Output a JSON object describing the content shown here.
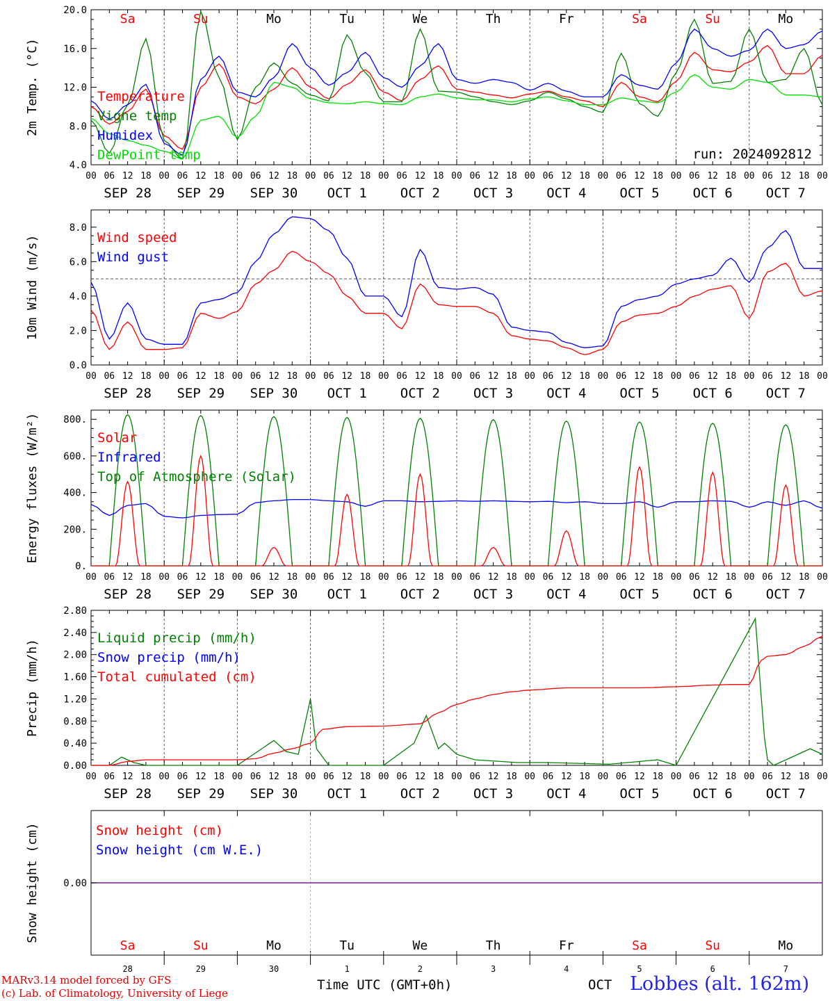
{
  "chart_data": [
    {
      "type": "line",
      "ylabel": "2m Temp. (°C)",
      "ylim": [
        4.0,
        20.0
      ],
      "yticks": [
        "4.0",
        "8.0",
        "12.0",
        "16.0",
        "20.0"
      ],
      "annotation": "run: 2024092812",
      "days": [
        "Sa",
        "Su",
        "Mo",
        "Tu",
        "We",
        "Th",
        "Fr",
        "Sa",
        "Su",
        "Mo"
      ],
      "x": [
        0,
        6,
        12,
        18,
        24,
        30,
        36,
        42,
        48,
        54,
        60,
        66,
        72,
        78,
        84,
        90,
        96,
        102,
        108,
        114,
        120,
        126,
        132,
        138,
        144,
        150,
        156,
        162,
        168,
        174,
        180,
        186,
        192,
        198,
        204,
        210,
        216,
        222,
        228,
        234,
        240
      ],
      "series": [
        {
          "name": "Temperature",
          "color": "#ff0000",
          "values": [
            10.0,
            8.2,
            9.5,
            11.8,
            7.0,
            5.6,
            12.0,
            14.4,
            11.0,
            10.3,
            11.8,
            14.0,
            12.0,
            10.8,
            12.3,
            13.8,
            11.5,
            10.6,
            12.8,
            14.2,
            11.8,
            11.5,
            11.2,
            10.9,
            11.3,
            11.6,
            11.0,
            10.6,
            10.0,
            12.5,
            11.0,
            10.5,
            12.6,
            15.6,
            13.8,
            13.6,
            14.6,
            16.3,
            13.4,
            13.4,
            15.3
          ]
        },
        {
          "name": "Vigne temp",
          "color": "#008000",
          "values": [
            8.6,
            5.2,
            10.2,
            17.0,
            6.5,
            4.6,
            19.8,
            13.0,
            6.6,
            12.0,
            14.5,
            12.4,
            11.2,
            10.6,
            17.4,
            13.5,
            10.5,
            10.5,
            18.0,
            11.6,
            11.5,
            11.0,
            10.5,
            10.2,
            10.6,
            11.5,
            10.8,
            10.0,
            9.4,
            15.5,
            10.3,
            9.0,
            13.5,
            19.0,
            12.4,
            12.6,
            18.0,
            12.5,
            12.8,
            16.0,
            10.2
          ]
        },
        {
          "name": "Humidex",
          "color": "#0000ff",
          "values": [
            10.6,
            8.7,
            10.2,
            12.3,
            6.2,
            5.0,
            12.8,
            15.2,
            11.5,
            11.0,
            13.0,
            16.5,
            14.0,
            12.2,
            13.5,
            15.6,
            13.0,
            12.0,
            14.2,
            16.5,
            12.8,
            12.4,
            12.8,
            12.5,
            11.7,
            12.4,
            11.6,
            11.0,
            11.0,
            13.3,
            12.2,
            11.8,
            14.5,
            18.0,
            16.0,
            15.2,
            15.8,
            18.0,
            16.0,
            16.4,
            17.8
          ]
        },
        {
          "name": "DewPoint temp",
          "color": "#00dd00",
          "values": [
            8.8,
            7.2,
            6.5,
            6.0,
            5.4,
            4.6,
            8.6,
            9.0,
            6.8,
            9.0,
            12.5,
            12.0,
            10.8,
            10.4,
            10.3,
            10.5,
            10.3,
            10.2,
            11.0,
            11.3,
            10.9,
            10.7,
            10.7,
            10.5,
            10.8,
            11.0,
            10.6,
            10.2,
            10.2,
            10.9,
            10.6,
            10.4,
            11.5,
            13.3,
            12.0,
            11.8,
            12.8,
            12.5,
            11.2,
            11.2,
            11.0
          ]
        }
      ]
    },
    {
      "type": "line",
      "ylabel": "10m Wind (m/s)",
      "ylim": [
        0.0,
        9.0
      ],
      "yticks": [
        "0.0",
        "2.0",
        "4.0",
        "6.0",
        "8.0"
      ],
      "reference_line": 5.0,
      "x": [
        0,
        6,
        12,
        18,
        24,
        30,
        36,
        42,
        48,
        54,
        60,
        66,
        72,
        78,
        84,
        90,
        96,
        102,
        108,
        114,
        120,
        126,
        132,
        138,
        144,
        150,
        156,
        162,
        168,
        174,
        180,
        186,
        192,
        198,
        204,
        210,
        216,
        222,
        228,
        234,
        240
      ],
      "series": [
        {
          "name": "Wind speed",
          "color": "#ff0000",
          "values": [
            3.2,
            0.9,
            2.5,
            0.9,
            0.9,
            1.0,
            3.0,
            2.7,
            3.1,
            4.7,
            5.5,
            6.6,
            6.0,
            5.3,
            4.0,
            3.0,
            3.0,
            2.1,
            4.7,
            3.5,
            3.4,
            3.4,
            3.0,
            1.7,
            1.5,
            1.4,
            1.0,
            0.6,
            0.9,
            2.5,
            2.9,
            3.0,
            3.4,
            4.0,
            4.4,
            4.6,
            2.7,
            5.4,
            5.9,
            4.0,
            4.3
          ]
        },
        {
          "name": "Wind gust",
          "color": "#0000ff",
          "values": [
            4.8,
            1.5,
            3.6,
            1.5,
            1.2,
            1.2,
            3.6,
            3.8,
            4.2,
            6.0,
            7.6,
            8.6,
            8.5,
            7.8,
            6.2,
            4.0,
            4.0,
            2.8,
            6.7,
            4.5,
            4.4,
            4.5,
            4.1,
            2.2,
            2.0,
            1.9,
            1.3,
            1.0,
            1.1,
            3.4,
            3.8,
            4.0,
            4.7,
            5.0,
            5.2,
            6.2,
            4.8,
            6.8,
            7.8,
            5.6,
            5.6
          ]
        }
      ]
    },
    {
      "type": "line",
      "ylabel": "Energy fluxes (W/m²)",
      "ylim": [
        0,
        850
      ],
      "yticks": [
        "0.",
        "200.",
        "400.",
        "600.",
        "800."
      ],
      "series": [
        {
          "name": "Solar",
          "color": "#ff0000",
          "daily_peak": [
            460,
            600,
            100,
            390,
            500,
            100,
            190,
            540,
            510,
            440
          ]
        },
        {
          "name": "Infrared",
          "color": "#0000ff",
          "x": [
            0,
            6,
            12,
            18,
            24,
            30,
            36,
            42,
            48,
            54,
            60,
            66,
            72,
            78,
            84,
            90,
            96,
            102,
            108,
            114,
            120,
            126,
            132,
            138,
            144,
            150,
            156,
            162,
            168,
            174,
            180,
            186,
            192,
            198,
            204,
            210,
            216,
            222,
            228,
            234,
            240
          ],
          "values": [
            335,
            275,
            330,
            340,
            270,
            262,
            275,
            280,
            282,
            345,
            355,
            362,
            362,
            355,
            350,
            325,
            355,
            355,
            350,
            352,
            355,
            352,
            355,
            352,
            350,
            352,
            345,
            350,
            340,
            340,
            350,
            320,
            350,
            350,
            355,
            352,
            320,
            350,
            330,
            355,
            315
          ]
        },
        {
          "name": "Top of Atmosphere (Solar)",
          "color": "#008000",
          "daily_peak": [
            825,
            820,
            815,
            810,
            805,
            798,
            790,
            785,
            778,
            770
          ]
        }
      ]
    },
    {
      "type": "line",
      "ylabel": "Precip (mm/h)",
      "ylim": [
        0.0,
        2.8
      ],
      "yticks": [
        "0.00",
        "0.40",
        "0.80",
        "1.20",
        "1.60",
        "2.00",
        "2.40",
        "2.80"
      ],
      "series": [
        {
          "name": "Liquid precip (mm/h)",
          "color": "#008000",
          "x": [
            0,
            6,
            10,
            14,
            18,
            24,
            48,
            60,
            64,
            68,
            72,
            74,
            78,
            96,
            106,
            110,
            114,
            116,
            120,
            126,
            140,
            150,
            170,
            186,
            192,
            218,
            220,
            221,
            222,
            224,
            230,
            236,
            240
          ],
          "values": [
            0,
            0,
            0.15,
            0.05,
            0,
            0,
            0,
            0.45,
            0.25,
            0.2,
            1.2,
            0.3,
            0,
            0,
            0.4,
            0.9,
            0.3,
            0.4,
            0.2,
            0.1,
            0.05,
            0.05,
            0.02,
            0.1,
            0,
            2.65,
            1.2,
            0.5,
            0.1,
            0,
            0.15,
            0.3,
            0.2
          ]
        },
        {
          "name": "Snow precip (mm/h)",
          "color": "#0000ff",
          "values": []
        },
        {
          "name": "Total cumulated (cm)",
          "color": "#ff0000",
          "x": [
            0,
            6,
            12,
            18,
            48,
            54,
            60,
            66,
            72,
            76,
            84,
            96,
            108,
            114,
            120,
            126,
            132,
            138,
            144,
            156,
            168,
            180,
            192,
            204,
            210,
            216,
            220,
            222,
            228,
            234,
            240
          ],
          "values": [
            0,
            0,
            0.07,
            0.1,
            0.1,
            0.12,
            0.22,
            0.3,
            0.4,
            0.65,
            0.7,
            0.71,
            0.75,
            0.95,
            1.1,
            1.2,
            1.28,
            1.33,
            1.36,
            1.4,
            1.4,
            1.4,
            1.42,
            1.45,
            1.46,
            1.46,
            1.9,
            1.97,
            2.0,
            2.15,
            2.33
          ]
        }
      ]
    },
    {
      "type": "line",
      "ylabel": "Snow height (cm)",
      "yticks": [
        "0.00"
      ],
      "series": [
        {
          "name": "Snow height (cm)",
          "color": "#ff0000",
          "values": [
            0,
            0
          ]
        },
        {
          "name": "Snow height (cm W.E.)",
          "color": "#0000ff",
          "values": [
            0,
            0
          ]
        }
      ]
    }
  ],
  "dates": [
    "SEP 28",
    "SEP 29",
    "SEP 30",
    "OCT  1",
    "OCT  2",
    "OCT  3",
    "OCT  4",
    "OCT  5",
    "OCT  6",
    "OCT  7"
  ],
  "hours": [
    "00",
    "06",
    "12",
    "18"
  ],
  "last_hour": "00",
  "bottom_days": [
    "Sa",
    "Su",
    "Mo",
    "Tu",
    "We",
    "Th",
    "Fr",
    "Sa",
    "Su",
    "Mo"
  ],
  "day_numbers": [
    "28",
    "29",
    "30",
    "1",
    "2",
    "3",
    "4",
    "5",
    "6",
    "7"
  ],
  "colors": {
    "weekend": "#ff0000",
    "weekday": "#000000",
    "grid": "#555555"
  },
  "x_axis_title": "Time UTC (GMT+0h)",
  "month_label": "OCT",
  "station": "Lobbes (alt. 162m)",
  "credit_line1": "MARv3.14 model forced by GFS",
  "credit_line2": "(c) Lab. of Climatology, University of Liege"
}
